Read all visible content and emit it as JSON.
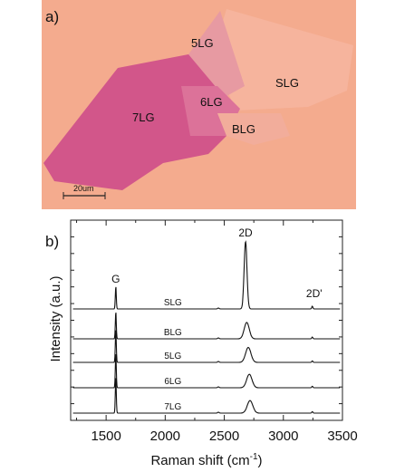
{
  "panel_a": {
    "label": "a)",
    "regions": [
      {
        "label": "5LG",
        "color": "#e8a3a3"
      },
      {
        "label": "SLG",
        "color": "#f5b59c"
      },
      {
        "label": "6LG",
        "color": "#dd7fa0"
      },
      {
        "label": "7LG",
        "color": "#cf4e84"
      },
      {
        "label": "BLG",
        "color": "#f3b09b"
      }
    ],
    "scale_bar": "20um",
    "colors": {
      "substrate": "#f7a98a",
      "frame": "#f2b39b"
    }
  },
  "chart_data": {
    "type": "line",
    "panel_label": "b)",
    "xlabel_main": "Raman shift (cm",
    "xlabel_sup": "-1",
    "xlabel_tail": ")",
    "ylabel": "Intensity (a.u.)",
    "xlim": [
      1200,
      3500
    ],
    "xticks": [
      1500,
      2000,
      2500,
      3000,
      3500
    ],
    "grid": false,
    "peaks": [
      {
        "name": "G",
        "x": 1582
      },
      {
        "name": "2D",
        "x": 2680
      },
      {
        "name": "2D'",
        "x": 3245
      }
    ],
    "series": [
      {
        "name": "SLG",
        "G": 0.75,
        "D2": 2.25,
        "D2_center": 2680,
        "D2_width": 17,
        "Dp": 0.09
      },
      {
        "name": "BLG",
        "G": 0.9,
        "D2": 0.55,
        "D2_center": 2690,
        "D2_width": 30,
        "Dp": 0.06
      },
      {
        "name": "5LG",
        "G": 1.1,
        "D2": 0.5,
        "D2_center": 2703,
        "D2_width": 32,
        "Dp": 0.05
      },
      {
        "name": "6LG",
        "G": 1.15,
        "D2": 0.45,
        "D2_center": 2712,
        "D2_width": 32,
        "Dp": 0.05
      },
      {
        "name": "7LG",
        "G": 1.2,
        "D2": 0.42,
        "D2_center": 2718,
        "D2_width": 33,
        "Dp": 0.05
      }
    ]
  }
}
